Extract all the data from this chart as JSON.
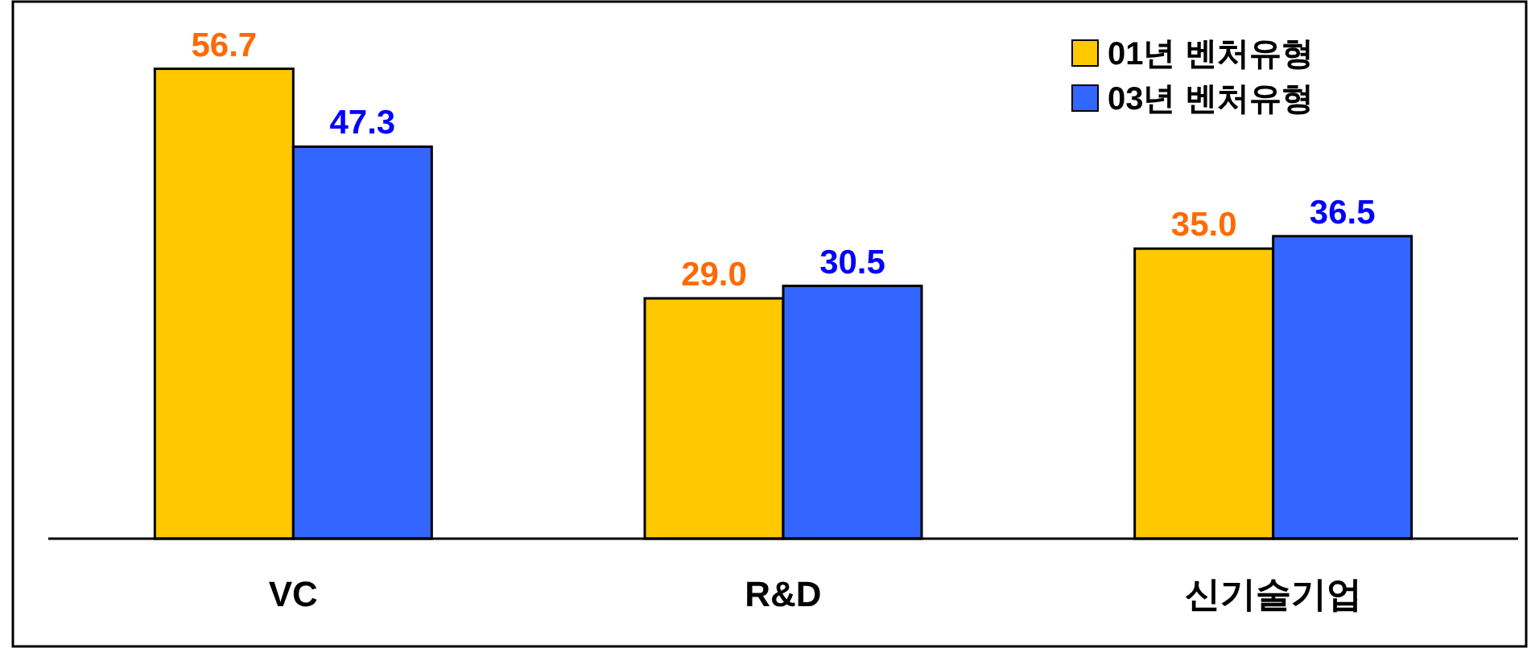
{
  "chart_data": {
    "type": "bar",
    "categories": [
      "VC",
      "R&D",
      "신기술기업"
    ],
    "series": [
      {
        "name": "01년 벤처유형",
        "color": "#ffc800",
        "values": [
          56.7,
          29.0,
          35.0
        ],
        "value_labels": [
          "56.7",
          "29.0",
          "35.0"
        ]
      },
      {
        "name": "03년 벤처유형",
        "color": "#3366ff",
        "values": [
          47.3,
          30.5,
          36.5
        ],
        "value_labels": [
          "47.3",
          "30.5",
          "36.5"
        ]
      }
    ],
    "ylim": [
      0,
      65
    ],
    "tick_labels": "x",
    "legend": "top right"
  }
}
